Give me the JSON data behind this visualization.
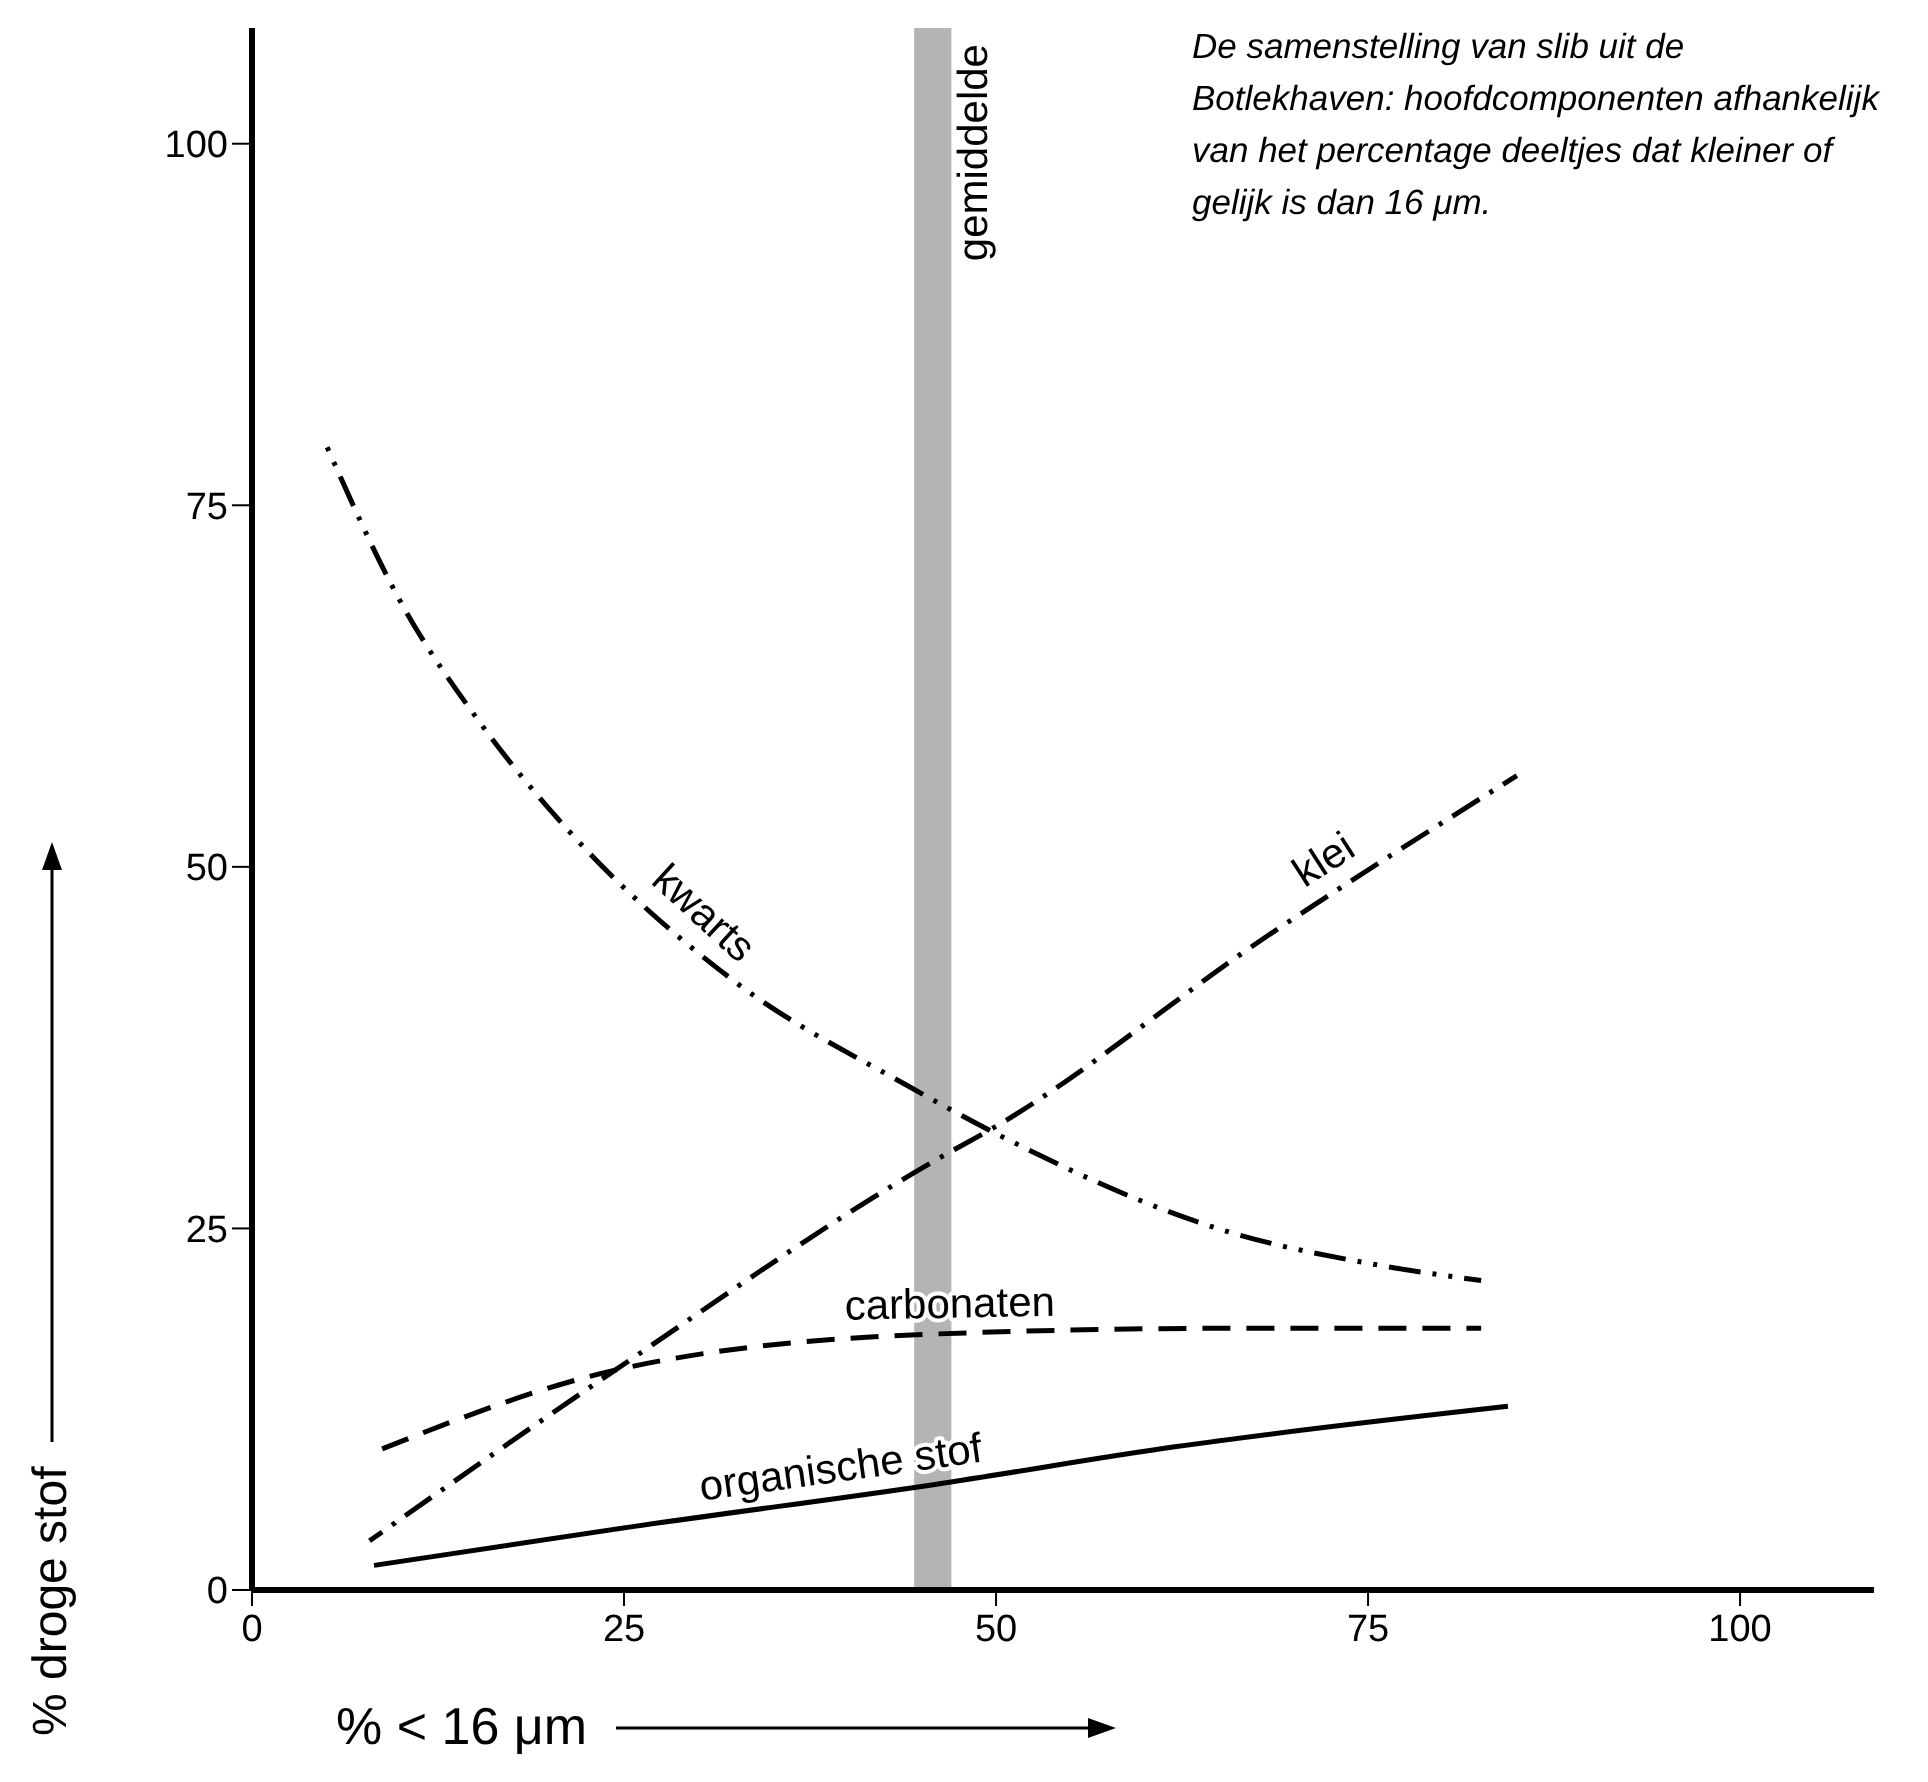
{
  "chart_data": {
    "type": "line",
    "title": "De samenstelling van slib uit de Botlekhaven: hoofdcomponenten afhankelijk van het percentage deeltjes dat kleiner of gelijk is dan 16 μm.",
    "xlabel": "% < 16 μm",
    "ylabel": "% droge stof",
    "xlim": [
      0,
      109
    ],
    "xticks": [
      0,
      25,
      50,
      75,
      100
    ],
    "ylim": [
      0,
      108
    ],
    "yticks": [
      0,
      25,
      50,
      75,
      100
    ],
    "grid": false,
    "legend": false,
    "marker": "none",
    "bands": [
      {
        "axis": "x",
        "from": 44.5,
        "to": 47,
        "label": "gemiddelde",
        "color": "#b4b4b4"
      }
    ],
    "series": [
      {
        "name": "kwarts",
        "color": "#000000",
        "line_style": "dashdotdot",
        "x": [
          4.8,
          10,
          15.3,
          21.1,
          32.4,
          44,
          50.3,
          65.5,
          75.5,
          82.6
        ],
        "values": [
          79.6,
          68.3,
          60,
          52.7,
          42.1,
          34.9,
          31.4,
          24.8,
          22.5,
          21.4
        ]
      },
      {
        "name": "klei",
        "color": "#000000",
        "line_style": "dashdot",
        "x": [
          7.9,
          24.4,
          45.9,
          49.9,
          68.2,
          85
        ],
        "values": [
          3.4,
          15.2,
          29.7,
          32,
          45.2,
          56.3
        ]
      },
      {
        "name": "carbonaten",
        "color": "#000000",
        "line_style": "dashed",
        "x": [
          8.6,
          24.4,
          45.9,
          66.5,
          82.6
        ],
        "values": [
          9.7,
          15.2,
          17.7,
          18.1,
          18.1
        ]
      },
      {
        "name": "organische stof",
        "color": "#000000",
        "line_style": "solid",
        "x": [
          8.2,
          25.7,
          45.9,
          62,
          84.4
        ],
        "values": [
          1.7,
          4.4,
          7.3,
          9.9,
          12.7
        ]
      }
    ]
  }
}
